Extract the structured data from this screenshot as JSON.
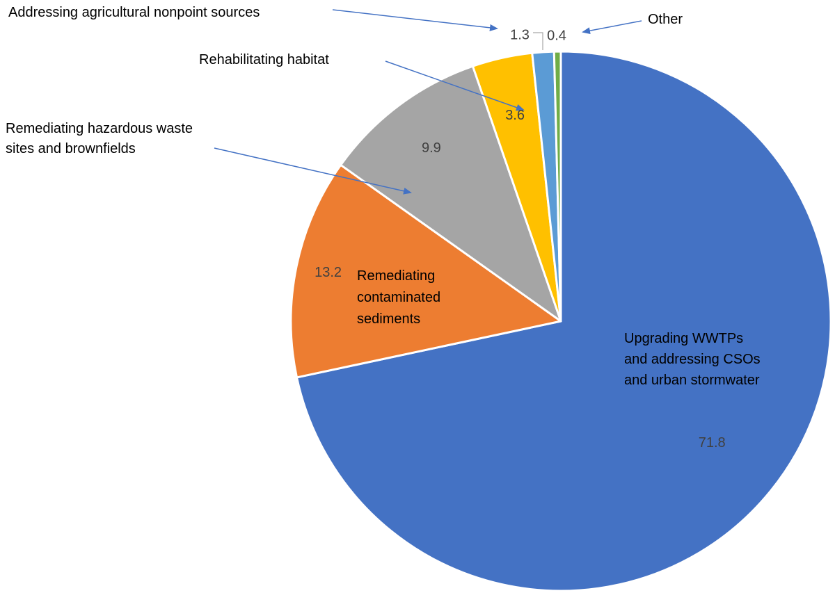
{
  "chart_data": {
    "type": "pie",
    "categories": [
      "Upgrading WWTPs and addressing CSOs and urban stormwater",
      "Remediating contaminated sediments",
      "Remediating hazardous waste sites and brownfields",
      "Rehabilitating habitat",
      "Addressing agricultural nonpoint sources",
      "Other"
    ],
    "values": [
      71.8,
      13.2,
      9.9,
      3.6,
      1.3,
      0.4
    ],
    "value_labels": [
      "71.8",
      "13.2",
      "9.9",
      "3.6",
      "1.3",
      "0.4"
    ],
    "colors": [
      "#4472c4",
      "#ed7d31",
      "#a5a5a5",
      "#ffc000",
      "#5b9bd5",
      "#70ad47"
    ],
    "title": "",
    "legend": "none",
    "annotation_labels": {
      "wwtp": [
        "Upgrading WWTPs",
        "and addressing CSOs",
        "and urban stormwater"
      ],
      "sediments": [
        "Remediating",
        "contaminated",
        "sediments"
      ],
      "hazardous": [
        "Remediating hazardous waste",
        "sites and brownfields"
      ],
      "habitat": [
        "Rehabilitating habitat"
      ],
      "agricultural": [
        "Addressing agricultural nonpoint sources"
      ],
      "other": [
        "Other"
      ]
    },
    "annotation_color": "#4472c4"
  }
}
